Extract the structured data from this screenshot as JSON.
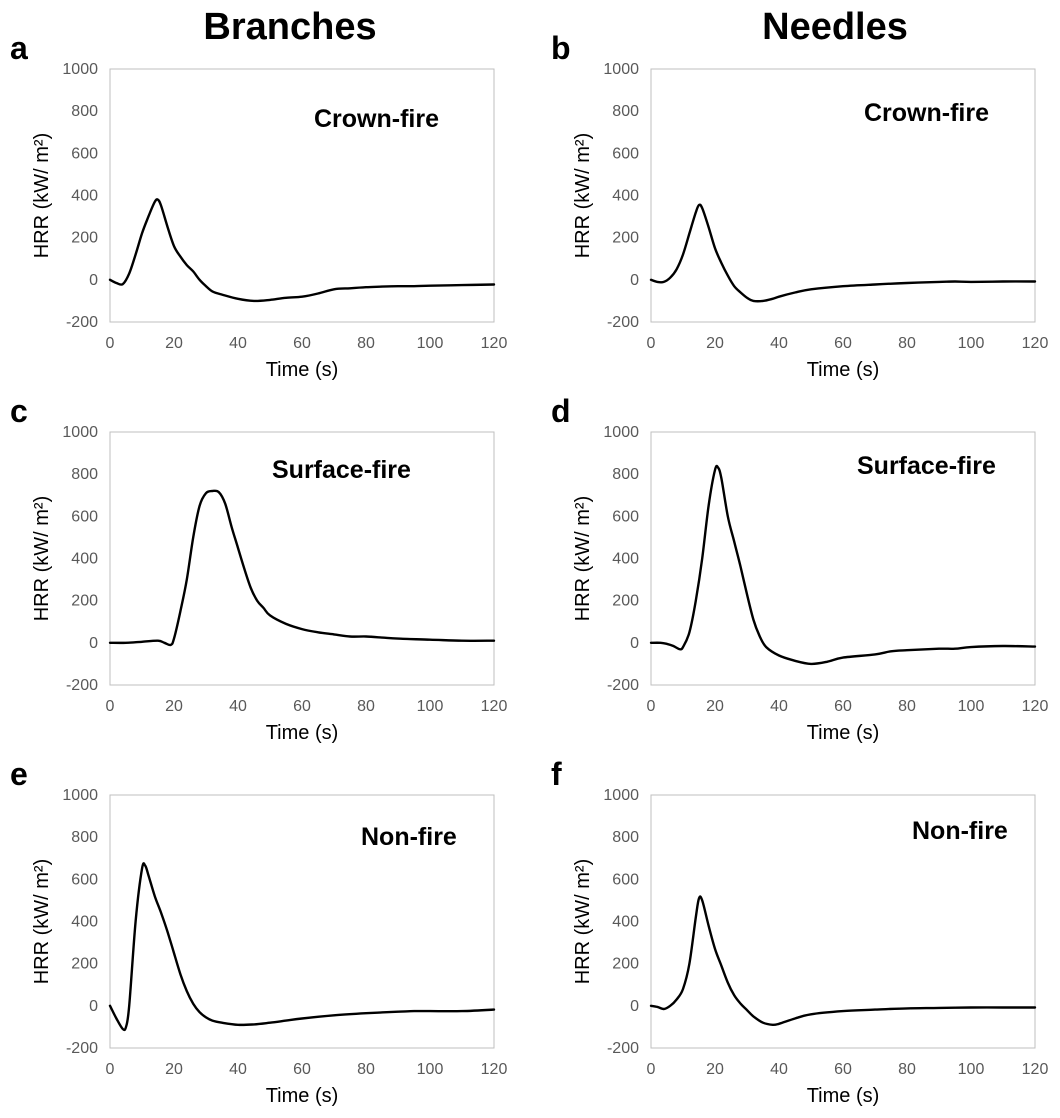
{
  "column_titles": [
    "Branches",
    "Needles"
  ],
  "chart_data": [
    {
      "panel": "a",
      "type": "line",
      "annotation": "Crown-fire",
      "xlabel": "Time (s)",
      "ylabel": "HRR (kW/ m²)",
      "xlim": [
        0,
        120
      ],
      "ylim": [
        -200,
        1000
      ],
      "xticks": [
        0,
        20,
        40,
        60,
        80,
        100,
        120
      ],
      "yticks": [
        -200,
        0,
        200,
        400,
        600,
        800,
        1000
      ],
      "series": [
        {
          "x": [
            0,
            2,
            4,
            6,
            8,
            10,
            12,
            14,
            15,
            16,
            18,
            20,
            22,
            24,
            26,
            28,
            30,
            32,
            35,
            40,
            45,
            50,
            55,
            60,
            65,
            70,
            75,
            80,
            85,
            90,
            95,
            100,
            110,
            120
          ],
          "y": [
            0,
            -15,
            -20,
            30,
            120,
            220,
            300,
            370,
            380,
            350,
            250,
            160,
            110,
            70,
            40,
            0,
            -30,
            -55,
            -70,
            -90,
            -100,
            -95,
            -85,
            -80,
            -65,
            -45,
            -40,
            -35,
            -32,
            -30,
            -30,
            -28,
            -25,
            -22
          ]
        }
      ]
    },
    {
      "panel": "b",
      "type": "line",
      "annotation": "Crown-fire",
      "xlabel": "Time (s)",
      "ylabel": "HRR (kW/ m²)",
      "xlim": [
        0,
        120
      ],
      "ylim": [
        -200,
        1000
      ],
      "xticks": [
        0,
        20,
        40,
        60,
        80,
        100,
        120
      ],
      "yticks": [
        -200,
        0,
        200,
        400,
        600,
        800,
        1000
      ],
      "series": [
        {
          "x": [
            0,
            2,
            4,
            6,
            8,
            10,
            12,
            14,
            15,
            16,
            18,
            20,
            22,
            24,
            26,
            28,
            30,
            32,
            35,
            38,
            40,
            45,
            50,
            60,
            70,
            80,
            90,
            95,
            100,
            110,
            120
          ],
          "y": [
            0,
            -10,
            -10,
            10,
            50,
            120,
            220,
            320,
            355,
            340,
            250,
            150,
            80,
            20,
            -30,
            -60,
            -85,
            -100,
            -100,
            -90,
            -80,
            -60,
            -45,
            -30,
            -22,
            -15,
            -10,
            -8,
            -10,
            -8,
            -8
          ]
        }
      ]
    },
    {
      "panel": "c",
      "type": "line",
      "annotation": "Surface-fire",
      "xlabel": "Time (s)",
      "ylabel": "HRR (kW/ m²)",
      "xlim": [
        0,
        120
      ],
      "ylim": [
        -200,
        1000
      ],
      "xticks": [
        0,
        20,
        40,
        60,
        80,
        100,
        120
      ],
      "yticks": [
        -200,
        0,
        200,
        400,
        600,
        800,
        1000
      ],
      "series": [
        {
          "x": [
            0,
            5,
            10,
            15,
            17,
            19,
            20,
            22,
            24,
            26,
            28,
            30,
            32,
            34,
            36,
            38,
            40,
            42,
            44,
            46,
            48,
            50,
            55,
            60,
            65,
            70,
            75,
            80,
            85,
            90,
            100,
            110,
            120
          ],
          "y": [
            0,
            0,
            5,
            10,
            0,
            -10,
            20,
            150,
            300,
            500,
            650,
            710,
            720,
            715,
            660,
            550,
            450,
            350,
            260,
            200,
            165,
            130,
            90,
            65,
            50,
            40,
            30,
            30,
            25,
            20,
            15,
            10,
            10
          ]
        }
      ]
    },
    {
      "panel": "d",
      "type": "line",
      "annotation": "Surface-fire",
      "xlabel": "Time (s)",
      "ylabel": "HRR (kW/ m²)",
      "xlim": [
        0,
        120
      ],
      "ylim": [
        -200,
        1000
      ],
      "xticks": [
        0,
        20,
        40,
        60,
        80,
        100,
        120
      ],
      "yticks": [
        -200,
        0,
        200,
        400,
        600,
        800,
        1000
      ],
      "series": [
        {
          "x": [
            0,
            3,
            5,
            7,
            9,
            10,
            12,
            14,
            16,
            18,
            20,
            21,
            22,
            24,
            26,
            28,
            30,
            32,
            34,
            36,
            40,
            45,
            50,
            55,
            60,
            70,
            75,
            80,
            90,
            95,
            100,
            110,
            120
          ],
          "y": [
            0,
            0,
            -5,
            -15,
            -30,
            -20,
            50,
            200,
            400,
            650,
            820,
            830,
            780,
            600,
            480,
            360,
            230,
            110,
            30,
            -20,
            -60,
            -85,
            -100,
            -90,
            -70,
            -55,
            -40,
            -35,
            -28,
            -28,
            -20,
            -15,
            -18
          ]
        }
      ]
    },
    {
      "panel": "e",
      "type": "line",
      "annotation": "Non-fire",
      "xlabel": "Time (s)",
      "ylabel": "HRR (kW/ m²)",
      "xlim": [
        0,
        120
      ],
      "ylim": [
        -200,
        1000
      ],
      "xticks": [
        0,
        20,
        40,
        60,
        80,
        100,
        120
      ],
      "yticks": [
        -200,
        0,
        200,
        400,
        600,
        800,
        1000
      ],
      "series": [
        {
          "x": [
            0,
            2,
            4,
            5,
            6,
            8,
            10,
            11,
            12,
            14,
            16,
            18,
            20,
            22,
            24,
            26,
            28,
            30,
            32,
            35,
            40,
            45,
            50,
            55,
            60,
            70,
            80,
            90,
            95,
            100,
            110,
            120
          ],
          "y": [
            0,
            -60,
            -110,
            -100,
            0,
            400,
            650,
            665,
            620,
            520,
            440,
            350,
            250,
            150,
            70,
            10,
            -30,
            -55,
            -70,
            -80,
            -90,
            -88,
            -80,
            -70,
            -60,
            -45,
            -35,
            -28,
            -25,
            -25,
            -25,
            -18
          ]
        }
      ]
    },
    {
      "panel": "f",
      "type": "line",
      "annotation": "Non-fire",
      "xlabel": "Time (s)",
      "ylabel": "HRR (kW/ m²)",
      "xlim": [
        0,
        120
      ],
      "ylim": [
        -200,
        1000
      ],
      "xticks": [
        0,
        20,
        40,
        60,
        80,
        100,
        120
      ],
      "yticks": [
        -200,
        0,
        200,
        400,
        600,
        800,
        1000
      ],
      "series": [
        {
          "x": [
            0,
            2,
            4,
            6,
            8,
            10,
            12,
            14,
            15,
            16,
            18,
            20,
            22,
            24,
            26,
            28,
            30,
            32,
            35,
            38,
            40,
            45,
            50,
            60,
            70,
            80,
            90,
            100,
            110,
            120
          ],
          "y": [
            0,
            -5,
            -15,
            0,
            30,
            80,
            200,
            420,
            510,
            500,
            380,
            270,
            190,
            110,
            50,
            10,
            -20,
            -50,
            -80,
            -90,
            -85,
            -60,
            -40,
            -25,
            -18,
            -12,
            -10,
            -8,
            -8,
            -8
          ]
        }
      ]
    }
  ]
}
